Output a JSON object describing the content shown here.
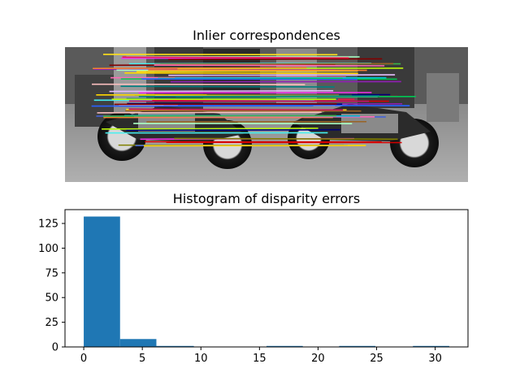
{
  "figure": {
    "panel1_title": "Inlier correspondences",
    "panel2_title": "Histogram of disparity errors"
  },
  "image_panel": {
    "description_icon": "stereo-motorcycle-image",
    "match_line_colors": [
      "#e6194b",
      "#3cb44b",
      "#ffe119",
      "#4363d8",
      "#f58231",
      "#911eb4",
      "#46f0f0",
      "#f032e6",
      "#bcf60c",
      "#fabebe",
      "#008080",
      "#e6beff",
      "#9a6324",
      "#800000",
      "#aaffc3",
      "#808000",
      "#000075",
      "#ff69b4",
      "#00c853",
      "#d50000",
      "#2962ff",
      "#ffd600",
      "#00b8d4",
      "#c51162"
    ]
  },
  "chart_data": {
    "type": "bar",
    "title": "Histogram of disparity errors",
    "xlabel": "",
    "ylabel": "",
    "bins": [
      {
        "x0": 0.0,
        "x1": 3.1,
        "count": 132
      },
      {
        "x0": 3.1,
        "x1": 6.2,
        "count": 8
      },
      {
        "x0": 6.2,
        "x1": 9.4,
        "count": 1
      },
      {
        "x0": 9.4,
        "x1": 12.5,
        "count": 0
      },
      {
        "x0": 12.5,
        "x1": 15.6,
        "count": 0
      },
      {
        "x0": 15.6,
        "x1": 18.7,
        "count": 1
      },
      {
        "x0": 18.7,
        "x1": 21.8,
        "count": 0
      },
      {
        "x0": 21.8,
        "x1": 24.9,
        "count": 1
      },
      {
        "x0": 24.9,
        "x1": 28.1,
        "count": 0
      },
      {
        "x0": 28.1,
        "x1": 31.2,
        "count": 1
      }
    ],
    "xlim": [
      -1.6,
      32.8
    ],
    "ylim": [
      0,
      139
    ],
    "xticks": [
      0,
      5,
      10,
      15,
      20,
      25,
      30
    ],
    "yticks": [
      0,
      25,
      50,
      75,
      100,
      125
    ],
    "bar_color": "#1f77b4",
    "grid": false
  }
}
